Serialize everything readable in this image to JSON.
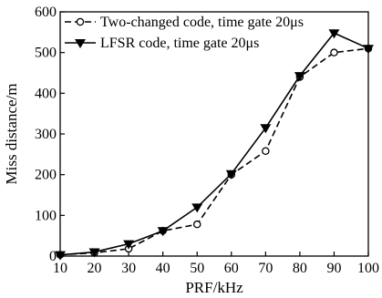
{
  "chart_data": {
    "type": "line",
    "title": "",
    "xlabel": "PRF/kHz",
    "ylabel": "Miss distance/m",
    "x": [
      10,
      20,
      30,
      40,
      50,
      60,
      70,
      80,
      90,
      100
    ],
    "xlim": [
      10,
      100
    ],
    "ylim": [
      0,
      600
    ],
    "xticks": [
      "10",
      "20",
      "30",
      "40",
      "50",
      "60",
      "70",
      "80",
      "90",
      "100"
    ],
    "yticks": [
      "0",
      "100",
      "200",
      "300",
      "400",
      "500",
      "600"
    ],
    "grid": false,
    "legend_position": "top-left",
    "series": [
      {
        "name": "Two-changed code, time gate 20μs",
        "values": [
          3,
          8,
          18,
          62,
          78,
          200,
          258,
          440,
          500,
          510
        ],
        "line_style": "dashed",
        "marker": "circle",
        "color": "#000000"
      },
      {
        "name": "LFSR code, time gate 20μs",
        "values": [
          3,
          10,
          30,
          62,
          120,
          202,
          315,
          443,
          548,
          510
        ],
        "line_style": "solid",
        "marker": "triangle-down",
        "color": "#000000"
      }
    ]
  }
}
